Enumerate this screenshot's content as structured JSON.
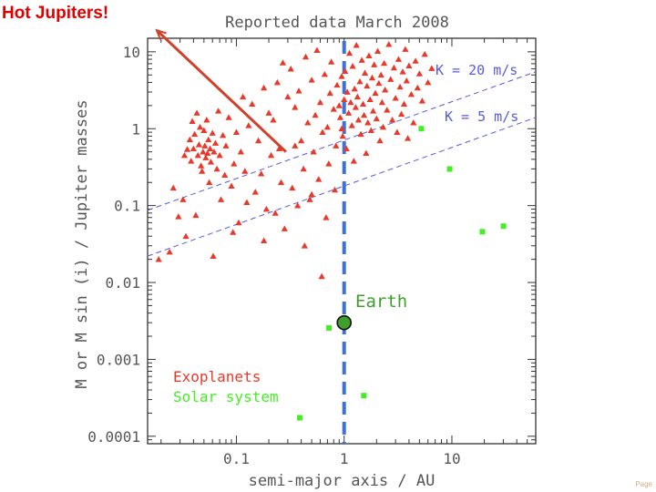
{
  "slide": {
    "annotation_title": "Hot Jupiters!",
    "page_label": "Page"
  },
  "colors": {
    "exoplanet": "#e8392a",
    "solar_system": "#44ee22",
    "k_lines": "#5a5adc",
    "earth_line": "#3f6fd8",
    "earth_marker": "#3ea02a",
    "arrow": "#d0402a"
  },
  "chart_data": {
    "type": "scatter",
    "title": "Reported data March 2008",
    "xlabel": "semi-major axis / AU",
    "ylabel": "M or M sin (i) / Jupiter masses",
    "xscale": "log",
    "yscale": "log",
    "xlim": [
      0.015,
      60
    ],
    "ylim": [
      8e-05,
      15
    ],
    "x_ticks": [
      {
        "v": 0.1,
        "label": "0.1"
      },
      {
        "v": 1,
        "label": "1"
      },
      {
        "v": 10,
        "label": "10"
      }
    ],
    "y_ticks": [
      {
        "v": 10,
        "label": "10"
      },
      {
        "v": 1,
        "label": "1"
      },
      {
        "v": 0.1,
        "label": "0.1"
      },
      {
        "v": 0.01,
        "label": "0.01"
      },
      {
        "v": 0.001,
        "label": "0.001"
      },
      {
        "v": 0.0001,
        "label": "0.0001"
      }
    ],
    "legend": {
      "position": "bottom-left",
      "entries": [
        "Exoplanets",
        "Solar system"
      ]
    },
    "k_lines": [
      {
        "label": "K = 20 m/s",
        "points": [
          [
            0.015,
            0.087
          ],
          [
            60,
            5.5
          ]
        ]
      },
      {
        "label": "K = 5 m/s",
        "points": [
          [
            0.015,
            0.022
          ],
          [
            60,
            1.4
          ]
        ]
      }
    ],
    "earth_line": {
      "x": 1
    },
    "earth": {
      "label": "Earth",
      "x": 1,
      "y": 0.003
    },
    "annotation_arrow": {
      "from": [
        0.3,
        0.5
      ],
      "to": [
        0.015,
        12
      ]
    },
    "series": [
      {
        "name": "Exoplanets",
        "marker": "triangle",
        "points": [
          [
            0.019,
            0.02
          ],
          [
            0.024,
            0.025
          ],
          [
            0.026,
            0.17
          ],
          [
            0.029,
            0.072
          ],
          [
            0.032,
            0.12
          ],
          [
            0.033,
            0.45
          ],
          [
            0.034,
            0.04
          ],
          [
            0.035,
            0.54
          ],
          [
            0.037,
            0.72
          ],
          [
            0.038,
            0.38
          ],
          [
            0.039,
            1.25
          ],
          [
            0.04,
            0.55
          ],
          [
            0.041,
            0.85
          ],
          [
            0.042,
            0.075
          ],
          [
            0.043,
            1.6
          ],
          [
            0.044,
            0.45
          ],
          [
            0.045,
            0.62
          ],
          [
            0.046,
            1.05
          ],
          [
            0.047,
            0.33
          ],
          [
            0.048,
            0.28
          ],
          [
            0.049,
            0.5
          ],
          [
            0.05,
            0.95
          ],
          [
            0.051,
            0.6
          ],
          [
            0.052,
            0.42
          ],
          [
            0.053,
            1.3
          ],
          [
            0.054,
            0.48
          ],
          [
            0.055,
            0.72
          ],
          [
            0.056,
            0.2
          ],
          [
            0.057,
            0.55
          ],
          [
            0.058,
            0.37
          ],
          [
            0.06,
            0.88
          ],
          [
            0.061,
            0.022
          ],
          [
            0.062,
            0.5
          ],
          [
            0.064,
            0.65
          ],
          [
            0.066,
            0.3
          ],
          [
            0.068,
            1.7
          ],
          [
            0.07,
            0.45
          ],
          [
            0.072,
            0.12
          ],
          [
            0.075,
            0.82
          ],
          [
            0.078,
            0.25
          ],
          [
            0.08,
            0.6
          ],
          [
            0.085,
            1.4
          ],
          [
            0.09,
            0.18
          ],
          [
            0.093,
            0.045
          ],
          [
            0.095,
            0.35
          ],
          [
            0.1,
            0.9
          ],
          [
            0.105,
            0.06
          ],
          [
            0.11,
            0.5
          ],
          [
            0.115,
            2.6
          ],
          [
            0.12,
            0.28
          ],
          [
            0.125,
            0.11
          ],
          [
            0.13,
            1.1
          ],
          [
            0.14,
            2.1
          ],
          [
            0.15,
            0.15
          ],
          [
            0.16,
            0.7
          ],
          [
            0.17,
            0.26
          ],
          [
            0.18,
            3.4
          ],
          [
            0.19,
            0.09
          ],
          [
            0.2,
            1.6
          ],
          [
            0.21,
            0.45
          ],
          [
            0.22,
            1.3
          ],
          [
            0.23,
            0.08
          ],
          [
            0.24,
            4.0
          ],
          [
            0.25,
            0.55
          ],
          [
            0.26,
            0.2
          ],
          [
            0.27,
            7.2
          ],
          [
            0.28,
            0.05
          ],
          [
            0.3,
            2.6
          ],
          [
            0.32,
            6.0
          ],
          [
            0.33,
            0.17
          ],
          [
            0.35,
            1.9
          ],
          [
            0.37,
            0.1
          ],
          [
            0.38,
            3.1
          ],
          [
            0.4,
            0.7
          ],
          [
            0.42,
            0.3
          ],
          [
            0.44,
            8.6
          ],
          [
            0.46,
            1.2
          ],
          [
            0.48,
            0.12
          ],
          [
            0.5,
            4.3
          ],
          [
            0.52,
            0.5
          ],
          [
            0.54,
            1.5
          ],
          [
            0.56,
            10.5
          ],
          [
            0.58,
            0.22
          ],
          [
            0.6,
            2.2
          ],
          [
            0.63,
            0.9
          ],
          [
            0.66,
            5.1
          ],
          [
            0.68,
            0.07
          ],
          [
            0.7,
            1.05
          ],
          [
            0.72,
            0.35
          ],
          [
            0.74,
            2.9
          ],
          [
            0.76,
            7.4
          ],
          [
            0.8,
            1.8
          ],
          [
            0.82,
            0.16
          ],
          [
            0.84,
            0.6
          ],
          [
            0.86,
            3.7
          ],
          [
            0.9,
            2.0
          ],
          [
            0.92,
            1.4
          ],
          [
            0.95,
            4.8
          ],
          [
            0.97,
            0.8
          ],
          [
            1.0,
            2.4
          ],
          [
            1.02,
            5.6
          ],
          [
            1.05,
            0.55
          ],
          [
            1.07,
            3.0
          ],
          [
            1.1,
            1.6
          ],
          [
            1.12,
            9.6
          ],
          [
            1.15,
            2.2
          ],
          [
            1.18,
            1.1
          ],
          [
            1.2,
            6.5
          ],
          [
            1.23,
            0.38
          ],
          [
            1.25,
            3.3
          ],
          [
            1.28,
            1.9
          ],
          [
            1.3,
            12.2
          ],
          [
            1.33,
            2.6
          ],
          [
            1.36,
            1.3
          ],
          [
            1.4,
            4.1
          ],
          [
            1.43,
            0.85
          ],
          [
            1.46,
            7.8
          ],
          [
            1.5,
            2.1
          ],
          [
            1.53,
            1.5
          ],
          [
            1.56,
            5.3
          ],
          [
            1.6,
            0.48
          ],
          [
            1.63,
            3.6
          ],
          [
            1.66,
            1.2
          ],
          [
            1.7,
            8.9
          ],
          [
            1.74,
            2.4
          ],
          [
            1.78,
            0.95
          ],
          [
            1.82,
            4.6
          ],
          [
            1.86,
            1.7
          ],
          [
            1.9,
            6.8
          ],
          [
            1.95,
            2.9
          ],
          [
            2.0,
            1.35
          ],
          [
            2.05,
            10.2
          ],
          [
            2.1,
            3.9
          ],
          [
            2.15,
            0.7
          ],
          [
            2.2,
            5.0
          ],
          [
            2.25,
            2.2
          ],
          [
            2.3,
            1.05
          ],
          [
            2.35,
            7.1
          ],
          [
            2.4,
            3.2
          ],
          [
            2.5,
            1.75
          ],
          [
            2.6,
            12.5
          ],
          [
            2.7,
            4.4
          ],
          [
            2.8,
            1.3
          ],
          [
            2.9,
            6.2
          ],
          [
            3.0,
            2.5
          ],
          [
            3.1,
            0.9
          ],
          [
            3.2,
            8.0
          ],
          [
            3.3,
            3.5
          ],
          [
            3.4,
            1.55
          ],
          [
            3.5,
            5.5
          ],
          [
            3.6,
            2.1
          ],
          [
            3.7,
            10.8
          ],
          [
            3.8,
            4.2
          ],
          [
            3.9,
            0.75
          ],
          [
            4.0,
            6.6
          ],
          [
            4.2,
            2.8
          ],
          [
            4.4,
            1.2
          ],
          [
            4.6,
            7.6
          ],
          [
            4.8,
            3.4
          ],
          [
            5.0,
            5.2
          ],
          [
            5.3,
            2.3
          ],
          [
            5.6,
            9.3
          ],
          [
            6.0,
            4.0
          ],
          [
            6.5,
            6.1
          ],
          [
            0.43,
            0.03
          ],
          [
            0.62,
            0.012
          ],
          [
            0.35,
            0.6
          ],
          [
            0.18,
            0.035
          ],
          [
            0.5,
            0.14
          ],
          [
            0.95,
            1.0
          ]
        ]
      },
      {
        "name": "Solar system",
        "marker": "square",
        "points": [
          [
            0.387,
            0.000174
          ],
          [
            0.723,
            0.00256
          ],
          [
            1.524,
            0.000338
          ],
          [
            5.2,
            1.0
          ],
          [
            9.54,
            0.299
          ],
          [
            19.2,
            0.0457
          ],
          [
            30.1,
            0.054
          ]
        ]
      }
    ]
  }
}
